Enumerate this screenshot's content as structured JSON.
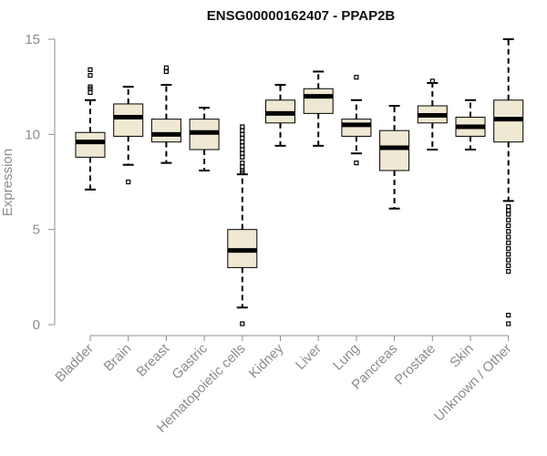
{
  "chart_data": {
    "type": "box",
    "title": "ENSG00000162407 - PPAP2B",
    "xlabel": "",
    "ylabel": "Expression",
    "ylim": [
      0,
      15
    ],
    "yticks": [
      0,
      5,
      10,
      15
    ],
    "colors": {
      "box_fill": "#efe8d2",
      "box_stroke": "#000000",
      "axis": "#8c8c8c"
    },
    "categories": [
      "Bladder",
      "Brain",
      "Breast",
      "Gastric",
      "Hematopoietic cells",
      "Kidney",
      "Liver",
      "Lung",
      "Pancreas",
      "Prostate",
      "Skin",
      "Unknown / Other"
    ],
    "boxes": [
      {
        "q1": 8.8,
        "median": 9.6,
        "q3": 10.1,
        "whisker_low": 7.1,
        "whisker_high": 11.8,
        "outliers": [
          12.2,
          12.4,
          12.5,
          13.1,
          13.4
        ]
      },
      {
        "q1": 9.9,
        "median": 10.9,
        "q3": 11.6,
        "whisker_low": 8.4,
        "whisker_high": 12.5,
        "outliers": [
          7.5
        ]
      },
      {
        "q1": 9.6,
        "median": 10.0,
        "q3": 10.8,
        "whisker_low": 8.5,
        "whisker_high": 12.6,
        "outliers": [
          13.3,
          13.5
        ]
      },
      {
        "q1": 9.2,
        "median": 10.1,
        "q3": 10.8,
        "whisker_low": 8.1,
        "whisker_high": 11.4,
        "outliers": []
      },
      {
        "q1": 3.0,
        "median": 3.9,
        "q3": 5.0,
        "whisker_low": 0.9,
        "whisker_high": 7.9,
        "outliers": [
          0.05,
          8.0,
          8.1,
          8.3,
          8.5,
          8.8,
          9.0,
          9.2,
          9.4,
          9.6,
          9.8,
          10.0,
          10.2,
          10.4
        ]
      },
      {
        "q1": 10.6,
        "median": 11.1,
        "q3": 11.8,
        "whisker_low": 9.4,
        "whisker_high": 12.6,
        "outliers": []
      },
      {
        "q1": 11.1,
        "median": 12.0,
        "q3": 12.4,
        "whisker_low": 9.4,
        "whisker_high": 13.3,
        "outliers": []
      },
      {
        "q1": 9.9,
        "median": 10.5,
        "q3": 10.8,
        "whisker_low": 9.0,
        "whisker_high": 11.8,
        "outliers": [
          8.5,
          13.0
        ]
      },
      {
        "q1": 8.1,
        "median": 9.3,
        "q3": 10.2,
        "whisker_low": 6.1,
        "whisker_high": 11.5,
        "outliers": []
      },
      {
        "q1": 10.6,
        "median": 11.0,
        "q3": 11.5,
        "whisker_low": 9.2,
        "whisker_high": 12.7,
        "outliers": [
          12.8
        ]
      },
      {
        "q1": 9.9,
        "median": 10.4,
        "q3": 10.9,
        "whisker_low": 9.2,
        "whisker_high": 11.8,
        "outliers": []
      },
      {
        "q1": 9.6,
        "median": 10.8,
        "q3": 11.8,
        "whisker_low": 6.5,
        "whisker_high": 15.0,
        "outliers": [
          0.05,
          0.5,
          2.8,
          3.1,
          3.4,
          3.7,
          4.0,
          4.3,
          4.6,
          4.9,
          5.2,
          5.5,
          5.8,
          6.0,
          6.2
        ]
      }
    ]
  }
}
